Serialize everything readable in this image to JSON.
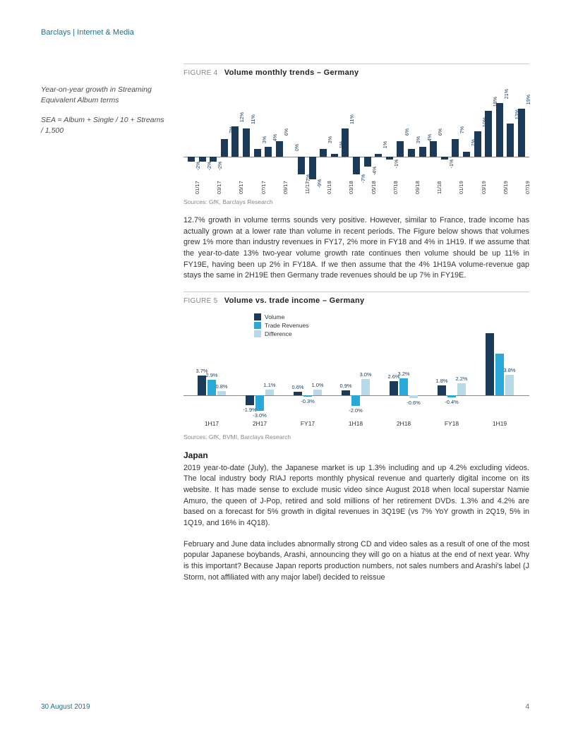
{
  "header": "Barclays | Internet & Media",
  "sidebar": {
    "p1": "Year-on-year growth in Streaming Equivalent Album terms",
    "p2": "SEA = Album + Single / 10 + Streams / 1,500"
  },
  "fig4": {
    "label": "FIGURE 4",
    "title": "Volume monthly trends – Germany",
    "sources": "Sources:  GfK, Barclays Research",
    "color": "#1b3a57",
    "categories": [
      "01/17",
      "03/17",
      "05/17",
      "07/17",
      "09/17",
      "11/17",
      "01/18",
      "03/18",
      "05/18",
      "07/18",
      "09/18",
      "11/18",
      "01/19",
      "03/19",
      "05/19",
      "07/19"
    ],
    "values": [
      -2,
      -2,
      -2,
      7,
      12,
      11,
      3,
      4,
      6,
      0,
      -7,
      -9,
      3,
      1,
      11,
      -7,
      -4,
      1,
      -1,
      6,
      3,
      4,
      6,
      -1,
      7,
      2,
      10,
      18,
      21,
      13,
      19
    ],
    "labels": [
      "-2%",
      "-2%",
      "-2%",
      "7%",
      "12%",
      "11%",
      "3%",
      "4%",
      "6%",
      "0%",
      "-7%",
      "-9%",
      "3%",
      "1%",
      "11%",
      "-7%",
      "-4%",
      "1%",
      "-1%",
      "6%",
      "3%",
      "4%",
      "6%",
      "-1%",
      "7%",
      "2%",
      "10%",
      "18%",
      "21%",
      "13%",
      "19%"
    ]
  },
  "para1": "12.7% growth in volume terms sounds very positive.  However, similar to France, trade income has actually grown at a lower rate than volume in recent periods.  The Figure below shows that volumes grew 1% more than industry revenues in FY17, 2% more in FY18 and 4% in 1H19.  If we assume that the year-to-date 13% two-year volume growth rate continues then volume should be up 11% in FY19E, having been up 2% in FY18A.  If we then assume that the 4% 1H19A volume-revenue gap stays the same in 2H19E then Germany trade revenues should be up 7% in FY19E.",
  "fig5": {
    "label": "FIGURE 5",
    "title": "Volume vs. trade income – Germany",
    "sources": "Sources:  GfK, BVMI, Barclays Research",
    "legend": [
      "Volume",
      "Trade Revenues",
      "Difference"
    ],
    "colors": {
      "volume": "#1b3a57",
      "trade": "#2aa9d9",
      "diff": "#b8d9e8"
    },
    "categories": [
      "1H17",
      "2H17",
      "FY17",
      "1H18",
      "2H18",
      "FY18",
      "1H19"
    ],
    "volume": [
      3.7,
      -1.9,
      0.6,
      0.9,
      2.6,
      1.8,
      11.7
    ],
    "trade": [
      2.9,
      -3.0,
      -0.3,
      -2.0,
      3.2,
      -0.4,
      7.9
    ],
    "diff": [
      0.8,
      1.1,
      1.0,
      3.0,
      -0.6,
      2.2,
      3.8
    ],
    "vol_lbl": [
      "3.7%",
      "-1.9%",
      "0.6%",
      "0.9%",
      "2.6%",
      "1.8%",
      "11.7%"
    ],
    "tr_lbl": [
      "2.9%",
      "-3.0%",
      "-0.3%",
      "-2.0%",
      "3.2%",
      "-0.4%",
      "7.9%"
    ],
    "df_lbl": [
      "0.8%",
      "1.1%",
      "1.0%",
      "3.0%",
      "-0.6%",
      "2.2%",
      "3.8%"
    ]
  },
  "japan_h": "Japan",
  "japan_p1": "2019 year-to-date (July), the Japanese market is up 1.3% including and up 4.2% excluding videos.  The local industry body RIAJ reports monthly physical revenue and quarterly digital income on its website. It has made sense to exclude music video since August 2018 when local superstar Namie Amuro, the queen of J-Pop, retired and sold millions of her retirement DVDs.  1.3% and 4.2% are based on a forecast for 5% growth in digital revenues in 3Q19E (vs 7% YoY growth in 2Q19, 5% in 1Q19, and 16% in 4Q18).",
  "japan_p2": "February and June data includes abnormally strong CD and video sales as a result of one of the most popular Japanese boybands, Arashi, announcing they will go on a hiatus at the end of next year. Why is this important?  Because Japan reports production numbers, not sales numbers and Arashi's label (J Storm, not affiliated with any major label) decided to reissue",
  "footer": {
    "date": "30 August 2019",
    "page": "4"
  }
}
